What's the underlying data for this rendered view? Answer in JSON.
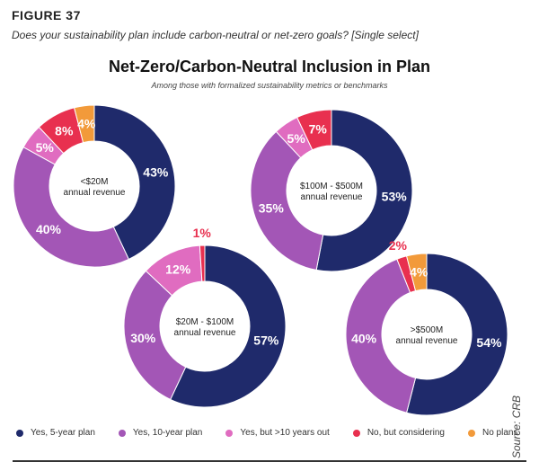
{
  "figure_label": "FIGURE 37",
  "question": "Does your sustainability plan include carbon-neutral or net-zero goals? [Single select]",
  "source": "Source: CRB",
  "colors": {
    "Yes, 5-year plan": "#1f2a6b",
    "Yes, 10-year plan": "#a356b6",
    "Yes, but >10 years out": "#e06cc0",
    "No, but considering": "#e8304f",
    "No plans": "#f29a3a"
  },
  "chart_data": {
    "type": "pie",
    "title": "Net-Zero/Carbon-Neutral Inclusion in Plan",
    "subtitle": "Among those with formalized sustainability metrics or benchmarks",
    "legend_position": "bottom",
    "categories": [
      "Yes, 5-year plan",
      "Yes, 10-year plan",
      "Yes, but >10 years out",
      "No, but considering",
      "No plans"
    ],
    "series": [
      {
        "name": "<$20M annual revenue",
        "values": [
          43,
          40,
          5,
          8,
          4
        ]
      },
      {
        "name": "$100M - $500M annual revenue",
        "values": [
          53,
          35,
          5,
          7,
          0
        ]
      },
      {
        "name": "$20M - $100M annual revenue",
        "values": [
          57,
          30,
          12,
          1,
          0
        ]
      },
      {
        "name": ">$500M annual revenue",
        "values": [
          54,
          40,
          0,
          2,
          4
        ]
      }
    ]
  }
}
